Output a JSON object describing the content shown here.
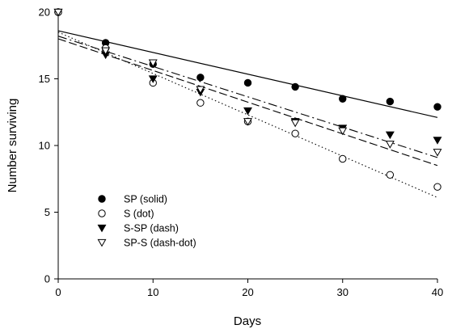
{
  "chart_data": {
    "type": "scatter",
    "xlabel": "Days",
    "ylabel": "Number surviving",
    "xlim": [
      0,
      40
    ],
    "ylim": [
      0,
      20
    ],
    "xticks": [
      0,
      10,
      20,
      30,
      40
    ],
    "yticks": [
      0,
      5,
      10,
      15,
      20
    ],
    "grid": false,
    "legend_position": "lower-left",
    "series": [
      {
        "name": "SP (solid)",
        "marker": "filled-circle",
        "line_style": "solid",
        "x": [
          0,
          5,
          10,
          15,
          20,
          25,
          30,
          35,
          40
        ],
        "y": [
          20,
          17.7,
          16.1,
          15.1,
          14.7,
          14.4,
          13.5,
          13.3,
          12.9
        ],
        "fit": [
          18.6,
          12.1
        ]
      },
      {
        "name": "S (dot)",
        "marker": "open-circle",
        "line_style": "dot",
        "x": [
          0,
          5,
          10,
          15,
          20,
          25,
          30,
          35,
          40
        ],
        "y": [
          20,
          17.3,
          14.7,
          13.2,
          11.8,
          10.9,
          9.0,
          7.8,
          6.9
        ],
        "fit": [
          18.5,
          6.1
        ]
      },
      {
        "name": "S-SP (dash)",
        "marker": "filled-triangle-down",
        "line_style": "dash",
        "x": [
          0,
          5,
          10,
          15,
          20,
          25,
          30,
          35,
          40
        ],
        "y": [
          20,
          16.8,
          15.0,
          14.0,
          12.6,
          11.8,
          11.3,
          10.8,
          10.4
        ],
        "fit": [
          18.0,
          8.5
        ]
      },
      {
        "name": "SP-S (dash-dot)",
        "marker": "open-triangle-down",
        "line_style": "dash-dot",
        "x": [
          0,
          5,
          10,
          15,
          20,
          25,
          30,
          35,
          40
        ],
        "y": [
          20,
          17.1,
          16.2,
          14.2,
          11.8,
          11.7,
          11.1,
          10.1,
          9.5
        ],
        "fit": [
          18.2,
          9.1
        ]
      }
    ]
  }
}
